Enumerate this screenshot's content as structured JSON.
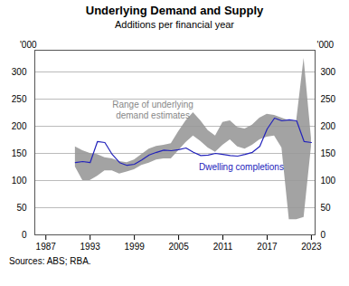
{
  "chart_data": {
    "type": "line",
    "title": "Underlying Demand and Supply",
    "subtitle": "Additions per financial year",
    "source": "Sources: ABS; RBA.",
    "ylabel": "'000",
    "y2label": "'000",
    "x": [
      1991,
      1992,
      1993,
      1994,
      1995,
      1996,
      1997,
      1998,
      1999,
      2000,
      2001,
      2002,
      2003,
      2004,
      2005,
      2006,
      2007,
      2008,
      2009,
      2010,
      2011,
      2012,
      2013,
      2014,
      2015,
      2016,
      2017,
      2018,
      2019,
      2020,
      2021,
      2022,
      2023
    ],
    "series": [
      {
        "type": "area",
        "color": "#999999",
        "upper": [
          162,
          155,
          150,
          148,
          142,
          140,
          135,
          133,
          138,
          148,
          158,
          163,
          165,
          168,
          190,
          210,
          225,
          210,
          192,
          182,
          207,
          210,
          198,
          195,
          202,
          215,
          222,
          220,
          215,
          210,
          210,
          325,
          178
        ],
        "lower": [
          125,
          100,
          100,
          108,
          118,
          118,
          112,
          116,
          120,
          128,
          132,
          138,
          140,
          140,
          155,
          170,
          182,
          172,
          160,
          152,
          165,
          175,
          162,
          158,
          165,
          175,
          180,
          182,
          160,
          28,
          28,
          32,
          162
        ]
      },
      {
        "type": "line",
        "color": "#2222bb",
        "values": [
          133,
          135,
          133,
          172,
          170,
          148,
          133,
          128,
          130,
          138,
          147,
          152,
          156,
          155,
          157,
          160,
          152,
          146,
          147,
          150,
          148,
          146,
          145,
          148,
          152,
          163,
          195,
          215,
          210,
          212,
          210,
          172,
          170
        ]
      }
    ],
    "annotations": [
      {
        "text": "Range of underlying\ndemand estimates",
        "x": 2001.5,
        "y": 248,
        "color": "#888888"
      },
      {
        "text": "Dwelling completions",
        "x": 2013.5,
        "y": 133,
        "color": "#2222bb"
      }
    ],
    "xlim": [
      1985.5,
      2023.5
    ],
    "xticks": [
      1987,
      1993,
      1999,
      2005,
      2011,
      2017,
      2023
    ],
    "ylim": [
      0,
      340
    ],
    "yticks": [
      0,
      50,
      100,
      150,
      200,
      250,
      300
    ],
    "y2lim": [
      0,
      340
    ],
    "y2ticks": [
      0,
      50,
      100,
      150,
      200,
      250,
      300
    ],
    "grid": true
  }
}
